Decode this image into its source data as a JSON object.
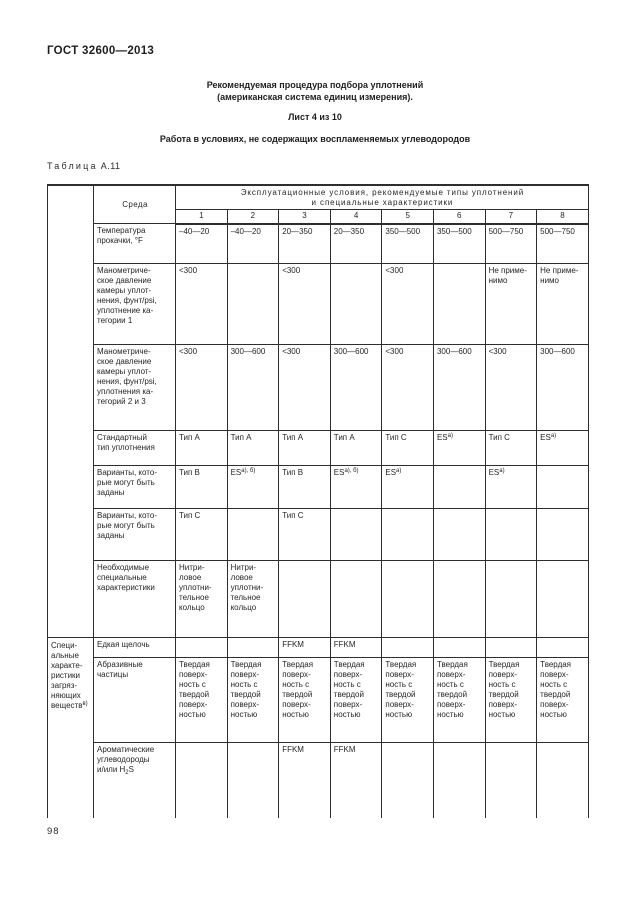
{
  "header": {
    "doc_code": "ГОСТ 32600—2013",
    "title_line1": "Рекомендуемая процедура подбора уплотнений",
    "title_line2": "(американская система единиц измерения).",
    "sheet": "Лист 4 из 10",
    "subtitle": "Работа в условиях, не содержащих воспламеняемых углеводородов"
  },
  "table": {
    "caption_word": "Таблица",
    "caption_number": "А.11",
    "media_header": "Среда",
    "span_header": "Эксплуатационные условия, рекомендуемые типы уплотнений\nи специальные характеристики",
    "col_numbers": [
      "1",
      "2",
      "3",
      "4",
      "5",
      "6",
      "7",
      "8"
    ],
    "group_label": "Специ-\nальные\nхаракте-\nристики\nзагряз-\nняющих\nвеществ^{в)}",
    "rows": [
      {
        "label": "Температура\nпрокачки, °F",
        "cells": [
          "–40—20",
          "–40—20",
          "20—350",
          "20—350",
          "350—500",
          "350—500",
          "500—750",
          "500—750"
        ]
      },
      {
        "label": "Манометриче-\nское давление\nкамеры уплот-\nнения, фунт/psi,\nуплотнение ка-\nтегории 1",
        "cells": [
          "<300",
          "",
          "<300",
          "",
          "<300",
          "",
          "Не приме-\nнимо",
          "Не приме-\nнимо"
        ]
      },
      {
        "label": "Манометриче-\nское давление\nкамеры уплот-\nнения, фунт/psi,\nуплотнения ка-\nтегорий 2 и 3",
        "cells": [
          "<300",
          "300—600",
          "<300",
          "300—600",
          "<300",
          "300—600",
          "<300",
          "300—600"
        ]
      },
      {
        "label": "Стандартный\nтип уплотнения",
        "cells": [
          "Тип А",
          "Тип А",
          "Тип А",
          "Тип А",
          "Тип С",
          "ES^{а)}",
          "Тип С",
          "ES^{а)}"
        ]
      },
      {
        "label": "Варианты, кото-\nрые могут быть\nзаданы",
        "cells": [
          "Тип В",
          "ES^{а), б)}",
          "Тип В",
          "ES^{а), б)}",
          "ES^{а)}",
          "",
          "ES^{а)}",
          ""
        ]
      },
      {
        "label": "Варианты, кото-\nрые могут быть\nзаданы",
        "cells": [
          "Тип С",
          "",
          "Тип С",
          "",
          "",
          "",
          "",
          ""
        ]
      },
      {
        "label": "Необходимые\nспециальные\nхарактеристики",
        "cells": [
          "Нитри-\nловое\nуплотни-\nтельное\nкольцо",
          "Нитри-\nловое\nуплотни-\nтельное\nкольцо",
          "",
          "",
          "",
          "",
          "",
          ""
        ]
      },
      {
        "label": "Едкая щелочь",
        "group_start": true,
        "cells": [
          "",
          "",
          "FFKM",
          "FFKM",
          "",
          "",
          "",
          ""
        ]
      },
      {
        "label": "Абразивные\nчастицы",
        "cells": [
          "Твердая\nповерх-\nность с\nтвердой\nповерх-\nностью",
          "Твердая\nповерх-\nность с\nтвердой\nповерх-\nностью",
          "Твердая\nповерх-\nность с\nтвердой\nповерх-\nностью",
          "Твердая\nповерх-\nность с\nтвердой\nповерх-\nностью",
          "Твердая\nповерх-\nность с\nтвердой\nповерх-\nностью",
          "Твердая\nповерх-\nность с\nтвердой\nповерх-\nностью",
          "Твердая\nповерх-\nность с\nтвердой\nповерх-\nностью",
          "Твердая\nповерх-\nность с\nтвердой\nповерх-\nностью"
        ]
      },
      {
        "label": "Ароматические\nуглеводороды\nи/или H_{2}S",
        "cells": [
          "",
          "",
          "FFKM",
          "FFKM",
          "",
          "",
          "",
          ""
        ]
      }
    ]
  },
  "footer": {
    "page_number": "98"
  }
}
